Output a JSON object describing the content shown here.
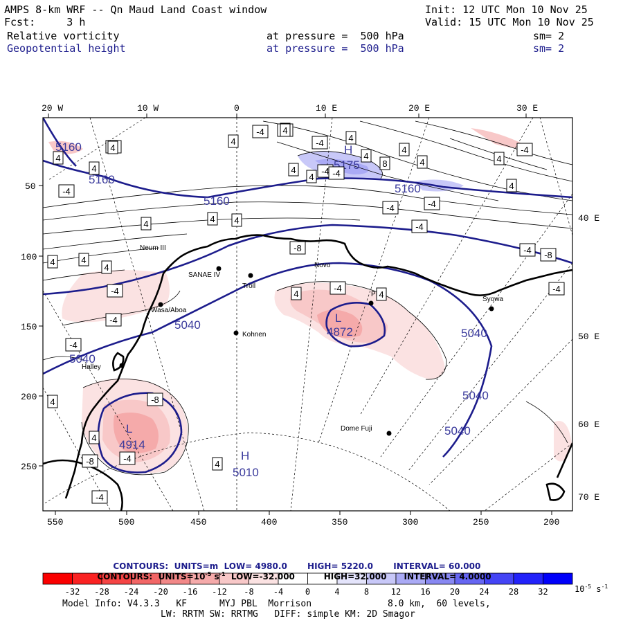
{
  "header": {
    "title": "AMPS 8-km WRF -- Qn Maud Land Coast window",
    "init": "Init: 12 UTC Mon 10 Nov 25",
    "fcst": "Fcst:     3 h",
    "valid": "Valid: 15 UTC Mon 10 Nov 25",
    "field1": "Relative vorticity",
    "field1_level": "at pressure =  500 hPa",
    "field1_sm": "sm= 2",
    "field2": "Geopotential height",
    "field2_level": "at pressure =  500 hPa",
    "field2_sm": "sm= 2"
  },
  "axes": {
    "top_lon_labels": [
      "20 W",
      "10 W",
      "0",
      "10 E",
      "20 E",
      "30 E"
    ],
    "right_lon_labels": [
      "40 E",
      "50 E",
      "60 E",
      "70 E"
    ],
    "left_y_ticks": [
      "50",
      "100",
      "150",
      "200",
      "250"
    ],
    "bottom_x_ticks": [
      "550",
      "500",
      "450",
      "400",
      "350",
      "300",
      "250",
      "200"
    ]
  },
  "stations": [
    "Neum III",
    "SANAE IV",
    "Troll",
    "Novo",
    "PE",
    "Syowa",
    "Wasa/Aboa",
    "Kohnen",
    "Halley",
    "Dome Fuji"
  ],
  "height_labels": [
    "5160",
    "5160",
    "5160",
    "5160",
    "5040",
    "5040",
    "5040",
    "5040",
    "5040",
    "5010",
    "4872",
    "4914",
    "5175"
  ],
  "pressure_centers": [
    "H",
    "H",
    "L",
    "L"
  ],
  "vorticity_boxes": [
    "4",
    "-4",
    "4",
    "-4",
    "4",
    "4",
    "-4",
    "4",
    "4",
    "4",
    "8",
    "4",
    "4",
    "4",
    "4",
    "-4",
    "4",
    "4",
    "4",
    "-4",
    "4",
    "-4",
    "4",
    "4",
    "-4",
    "4",
    "4",
    "-4",
    "-4",
    "4",
    "-4",
    "-8",
    "-4",
    "-4",
    "4",
    "4",
    "-4",
    "-4",
    "-4",
    "-8",
    "-4",
    "-4",
    "4",
    "4",
    "-8",
    "-8",
    "-4",
    "4",
    "4",
    "-4",
    "4",
    "4",
    "4"
  ],
  "contour_info": {
    "line1_label": "CONTOURS:  UNITS=m  LOW=",
    "line1_low": "4980.0",
    "line1_high_label": "HIGH=",
    "line1_high": "5220.0",
    "line1_int_label": "INTERVAL=",
    "line1_int": "60.000",
    "line2_label": "CONTOURS:  UNITS=10",
    "line2_exp": "-5",
    "line2_unit": " s",
    "line2_exp2": "-1",
    "line2_low_label": "LOW=",
    "line2_low": "-32.000",
    "line2_high_label": "HIGH=",
    "line2_high": "32.000",
    "line2_int_label": "INTERVAL=",
    "line2_int": "4.0000"
  },
  "colorbar": {
    "colors": [
      "#fa0000",
      "#fa2222",
      "#f54444",
      "#f26666",
      "#f28888",
      "#f5aaaa",
      "#f8c8c8",
      "#fbe2e2",
      "#ffffff",
      "#ffffff",
      "#e4e4fb",
      "#c8c8f8",
      "#aaaaf5",
      "#8888f2",
      "#6666f2",
      "#4444f5",
      "#2222fa",
      "#0000fa"
    ],
    "labels": [
      "-32",
      "-28",
      "-24",
      "-20",
      "-16",
      "-12",
      "-8",
      "-4",
      "0",
      "4",
      "8",
      "12",
      "16",
      "20",
      "24",
      "28",
      "32"
    ],
    "unit_base": "10",
    "unit_exp": "-5",
    "unit_s": "s",
    "unit_exp2": "-1"
  },
  "footer": {
    "line1_left": "Model Info: V4.3.3   KF      MYJ PBL  Morrison",
    "line1_right": "8.0 km,  60 levels,",
    "line2": "LW: RRTM SW: RRTMG   DIFF: simple KM: 2D Smagor"
  }
}
